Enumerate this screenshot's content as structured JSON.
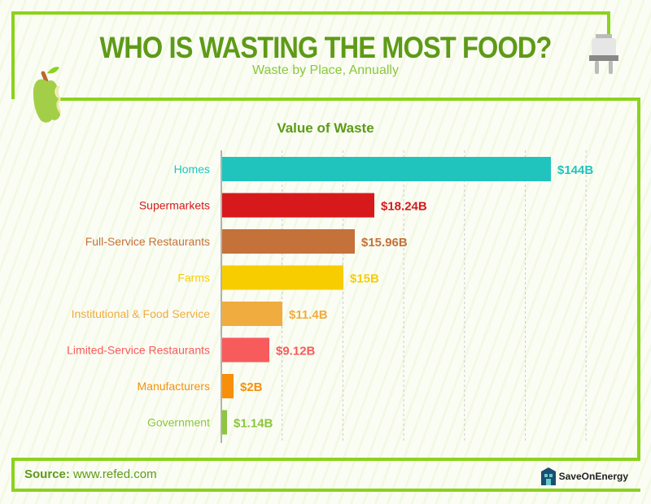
{
  "header": {
    "title": "WHO IS WASTING THE MOST FOOD?",
    "subtitle": "Waste by Place, Annually"
  },
  "footer": {
    "source_label": "Source:",
    "source_url": "www.refed.com",
    "brand": "SaveOnEnergy"
  },
  "chart_data": {
    "type": "bar",
    "orientation": "horizontal",
    "title": "Value of Waste",
    "categories": [
      "Homes",
      "Supermarkets",
      "Full-Service Restaurants",
      "Farms",
      "Institutional & Food Service",
      "Limited-Service Restaurants",
      "Manufacturers",
      "Government"
    ],
    "values": [
      144,
      18.24,
      15.96,
      15,
      11.4,
      9.12,
      2,
      1.14
    ],
    "value_labels": [
      "$144B",
      "$18.24B",
      "$15.96B",
      "$15B",
      "$11.4B",
      "$9.12B",
      "$2B",
      "$1.14B"
    ],
    "unit": "billion USD",
    "colors": [
      "#20c4bd",
      "#d7191c",
      "#c5713a",
      "#f7cd00",
      "#f0ac3f",
      "#f75b5b",
      "#f78f0a",
      "#8cc63f"
    ],
    "grid": true
  }
}
